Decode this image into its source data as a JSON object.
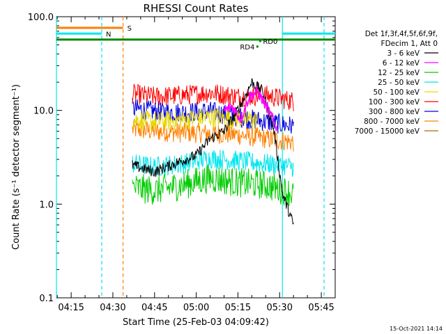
{
  "chart_data": {
    "type": "line",
    "title": "RHESSI Count Rates",
    "xlabel": "Start Time (25-Feb-03 04:09:42)",
    "ylabel": "Count Rate (s⁻¹ detector segment⁻¹)",
    "yscale": "log",
    "ylim": [
      0.1,
      100
    ],
    "xlim": [
      "04:09:42",
      "05:50:00"
    ],
    "x_ticks": [
      "04:15",
      "04:30",
      "04:45",
      "05:00",
      "05:15",
      "05:30",
      "05:45"
    ],
    "y_ticks": [
      "0.1",
      "1.0",
      "10.0",
      "100.0"
    ],
    "legend_title": [
      "Det 1f,3f,4f,5f,6f,9f,",
      "FDecim 1, Att 0"
    ],
    "legend_position": "top-right",
    "series": [
      {
        "name": "3 - 6 keV",
        "color": "#000000",
        "points": [
          [
            "04:37",
            2.6
          ],
          [
            "04:45",
            2.2
          ],
          [
            "04:52",
            2.7
          ],
          [
            "05:00",
            3.3
          ],
          [
            "05:05",
            5.0
          ],
          [
            "05:10",
            6.0
          ],
          [
            "05:14",
            9.0
          ],
          [
            "05:17",
            13.0
          ],
          [
            "05:20",
            20.0
          ],
          [
            "05:24",
            16.0
          ],
          [
            "05:28",
            6.0
          ],
          [
            "05:31",
            1.3
          ],
          [
            "05:35",
            0.6
          ]
        ]
      },
      {
        "name": "6 - 12 keV",
        "color": "#ff00ff",
        "points": [
          [
            "05:10",
            10.0
          ],
          [
            "05:13",
            11.0
          ],
          [
            "05:16",
            8.0
          ],
          [
            "05:19",
            14.0
          ],
          [
            "05:22",
            16.0
          ],
          [
            "05:26",
            10.0
          ],
          [
            "05:29",
            6.5
          ]
        ]
      },
      {
        "name": "12 - 25 keV",
        "color": "#00cc00",
        "points": [
          [
            "04:37",
            1.5
          ],
          [
            "04:45",
            1.4
          ],
          [
            "04:55",
            1.6
          ],
          [
            "05:05",
            1.9
          ],
          [
            "05:15",
            1.7
          ],
          [
            "05:25",
            1.6
          ],
          [
            "05:35",
            1.3
          ]
        ]
      },
      {
        "name": "25 - 50 keV",
        "color": "#00e5ee",
        "points": [
          [
            "04:37",
            2.7
          ],
          [
            "04:45",
            2.5
          ],
          [
            "04:55",
            2.7
          ],
          [
            "05:05",
            3.1
          ],
          [
            "05:15",
            2.9
          ],
          [
            "05:25",
            2.7
          ],
          [
            "05:35",
            2.5
          ]
        ]
      },
      {
        "name": "50 - 100 keV",
        "color": "#e8d800",
        "points": [
          [
            "04:37",
            8.0
          ],
          [
            "04:45",
            7.6
          ],
          [
            "04:55",
            7.9
          ],
          [
            "05:05",
            8.5
          ],
          [
            "05:15",
            8.2
          ],
          [
            "05:22",
            7.8
          ]
        ]
      },
      {
        "name": "100 - 300 keV",
        "color": "#ff0000",
        "points": [
          [
            "04:37",
            15.0
          ],
          [
            "04:45",
            14.0
          ],
          [
            "04:55",
            14.5
          ],
          [
            "05:05",
            15.5
          ],
          [
            "05:15",
            14.0
          ],
          [
            "05:25",
            14.5
          ],
          [
            "05:35",
            12.5
          ]
        ]
      },
      {
        "name": "300 - 800 keV",
        "color": "#0000dd",
        "points": [
          [
            "04:37",
            10.5
          ],
          [
            "04:45",
            9.8
          ],
          [
            "04:55",
            9.5
          ],
          [
            "05:05",
            9.8
          ],
          [
            "05:15",
            8.5
          ],
          [
            "05:25",
            7.6
          ],
          [
            "05:35",
            6.8
          ]
        ]
      },
      {
        "name": "800 - 7000 keV",
        "color": "#ff7f00",
        "points": [
          [
            "04:37",
            6.3
          ],
          [
            "04:45",
            6.0
          ],
          [
            "04:55",
            5.8
          ],
          [
            "05:05",
            5.7
          ],
          [
            "05:15",
            5.5
          ],
          [
            "05:25",
            5.0
          ],
          [
            "05:35",
            4.6
          ]
        ]
      },
      {
        "name": "7000 - 15000 keV",
        "color": "#c06000",
        "points": []
      }
    ],
    "annotations": {
      "vlines": [
        {
          "time": "04:09:42",
          "color": "#00e5ee",
          "style": "solid"
        },
        {
          "time": "04:26:00",
          "color": "#00e5ee",
          "style": "dashed"
        },
        {
          "time": "04:33:40",
          "color": "#ff7f00",
          "style": "dashed"
        },
        {
          "time": "05:31:00",
          "color": "#00e5ee",
          "style": "solid"
        },
        {
          "time": "05:46:00",
          "color": "#00e5ee",
          "style": "dashed"
        }
      ],
      "hbars": [
        {
          "label": "S",
          "color": "#ff7f00",
          "from": "04:09:42",
          "to": "04:33:40",
          "value": 76
        },
        {
          "label": "N",
          "color": "#00e5ee",
          "from": "04:09:42",
          "to": "04:26:00",
          "value": 66
        },
        {
          "label": "",
          "color": "#00e5ee",
          "from": "05:31:00",
          "to": "05:50:00",
          "value": 66
        },
        {
          "label": "",
          "color": "#008800",
          "from": "04:09:42",
          "to": "05:50:00",
          "value": 57
        }
      ],
      "points": [
        {
          "label": "RD0",
          "color": "#008800",
          "time": "05:23:00",
          "value": 55
        },
        {
          "label": "RD4",
          "color": "#008800",
          "time": "05:22:00",
          "value": 48
        }
      ]
    }
  },
  "footer": {
    "timestamp": "15-Oct-2021 14:14"
  }
}
